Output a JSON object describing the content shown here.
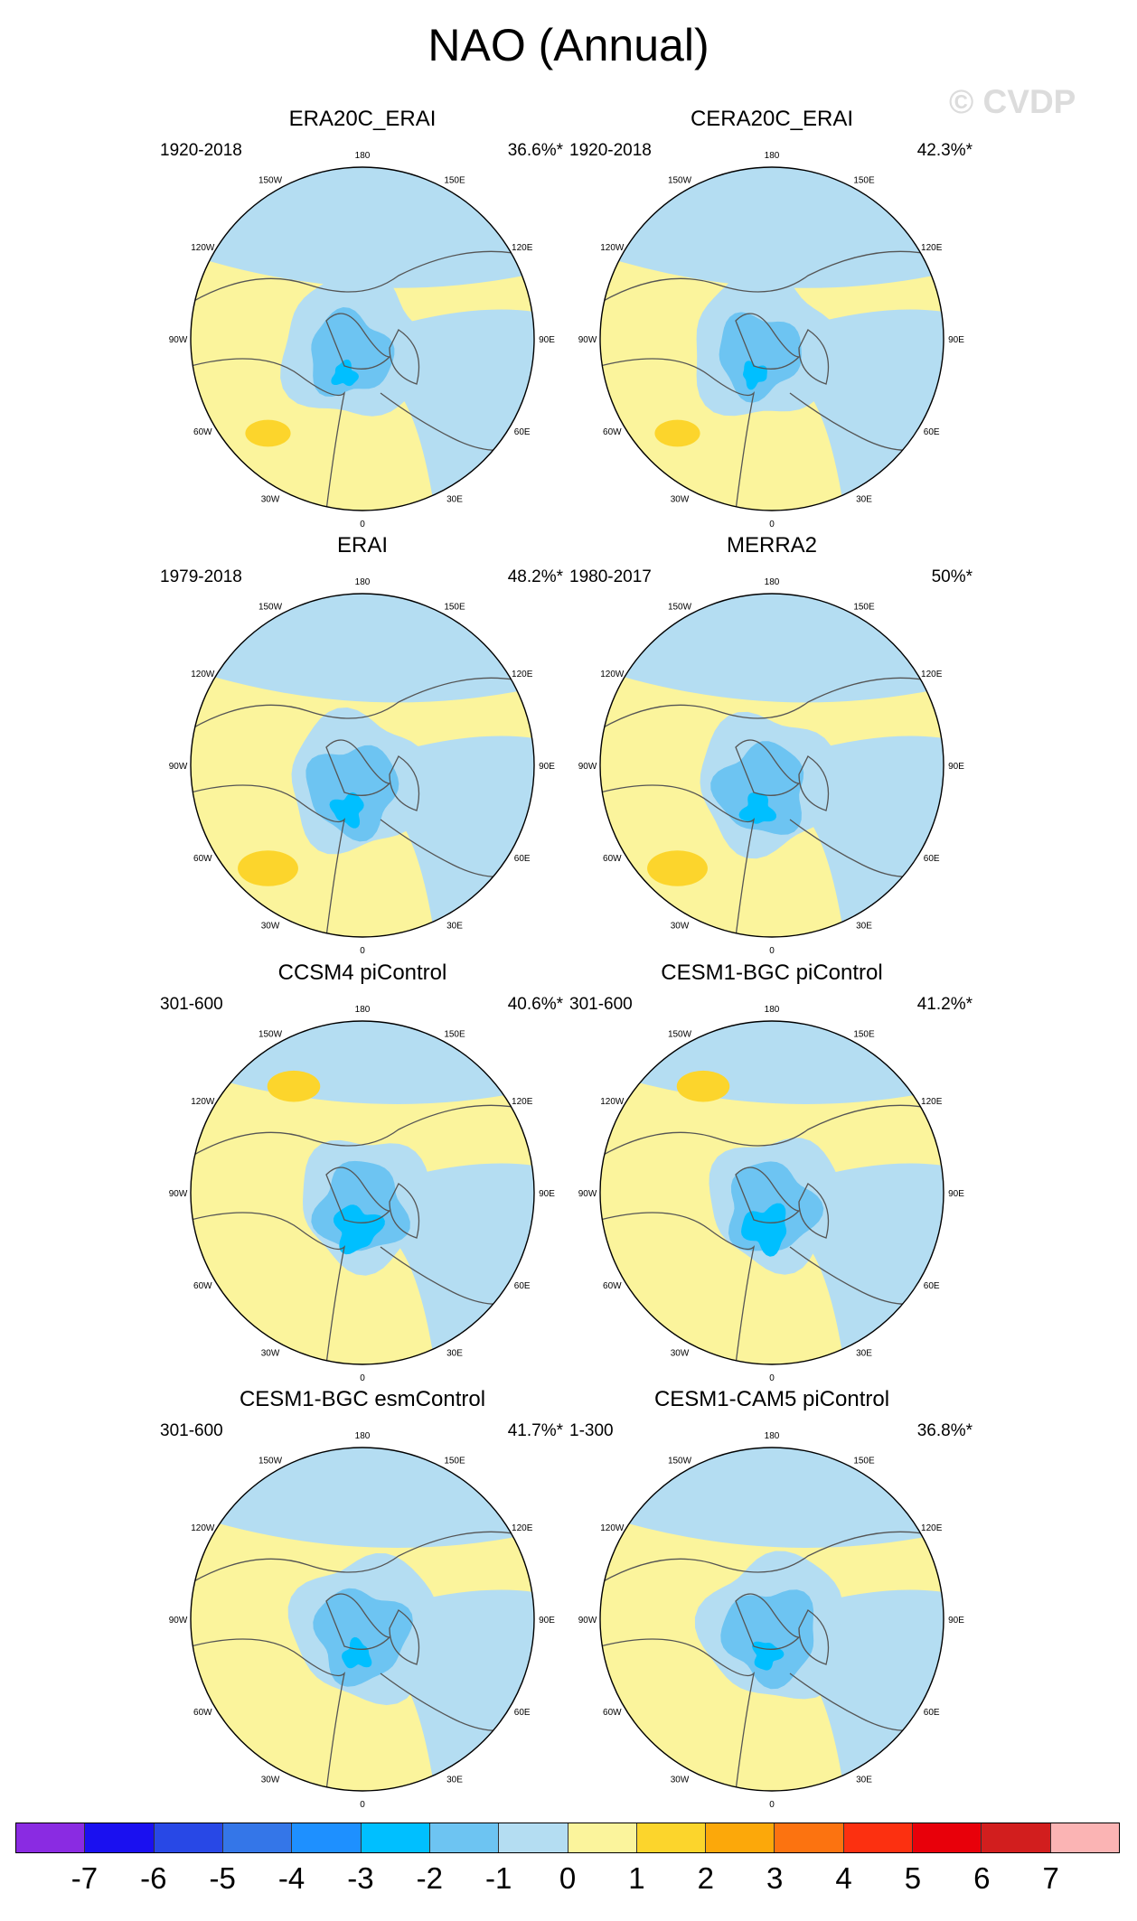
{
  "title": "NAO (Annual)",
  "watermark": "© CVDP",
  "lon_labels": [
    "180",
    "150E",
    "120E",
    "90E",
    "60E",
    "30E",
    "0",
    "30W",
    "60W",
    "90W",
    "120W",
    "150W"
  ],
  "panels": [
    {
      "title": "ERA20C_ERAI",
      "period": "1920-2018",
      "variance": "36.6%*",
      "variant": 0
    },
    {
      "title": "CERA20C_ERAI",
      "period": "1920-2018",
      "variance": "42.3%*",
      "variant": 0
    },
    {
      "title": "ERAI",
      "period": "1979-2018",
      "variance": "48.2%*",
      "variant": 1
    },
    {
      "title": "MERRA2",
      "period": "1980-2017",
      "variance": "50%*",
      "variant": 1
    },
    {
      "title": "CCSM4 piControl",
      "period": "301-600",
      "variance": "40.6%*",
      "variant": 2
    },
    {
      "title": "CESM1-BGC piControl",
      "period": "301-600",
      "variance": "41.2%*",
      "variant": 2
    },
    {
      "title": "CESM1-BGC esmControl",
      "period": "301-600",
      "variance": "41.7%*",
      "variant": 3
    },
    {
      "title": "CESM1-CAM5 piControl",
      "period": "1-300",
      "variance": "36.8%*",
      "variant": 3
    }
  ],
  "colorbar": {
    "labels": [
      "-7",
      "-6",
      "-5",
      "-4",
      "-3",
      "-2",
      "-1",
      "0",
      "1",
      "2",
      "3",
      "4",
      "5",
      "6",
      "7"
    ],
    "colors": [
      "#8a2be2",
      "#1a10f0",
      "#2848e6",
      "#3476e8",
      "#1e90ff",
      "#00bfff",
      "#6dc4f2",
      "#b4ddf2",
      "#fbf49c",
      "#fcd52c",
      "#fca80a",
      "#fc7310",
      "#fc3010",
      "#e8000a",
      "#d21e1e",
      "#fbb4b4"
    ]
  }
}
